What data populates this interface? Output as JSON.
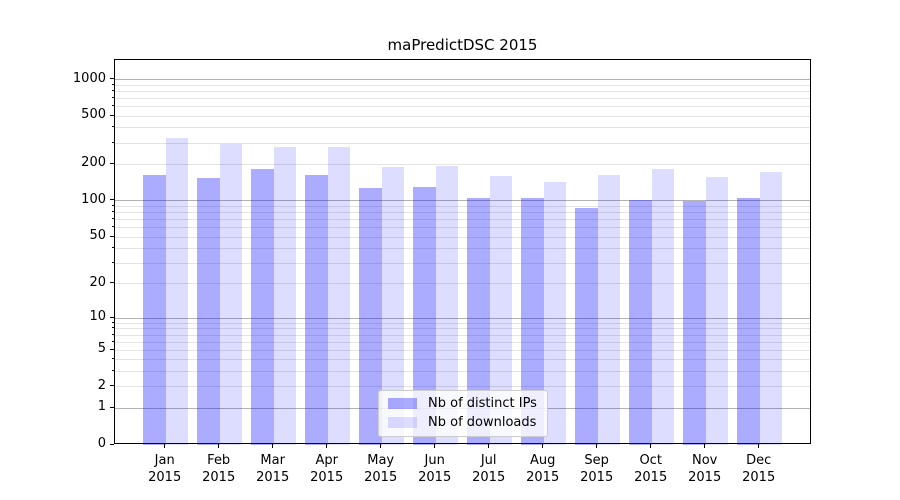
{
  "window": {
    "background": "#ffffff"
  },
  "chart_data": {
    "type": "bar",
    "title": "maPredictDSC 2015",
    "xlabel": "",
    "ylabel": "",
    "yscale": "log1p",
    "grid": true,
    "grid_major_color": "#b2b2b2",
    "grid_minor_color": "#e4e4e4",
    "ylim": [
      0,
      1430
    ],
    "yticks": [
      0,
      1,
      2,
      5,
      10,
      20,
      50,
      100,
      200,
      500,
      1000
    ],
    "ytick_decades": [
      1,
      10,
      100,
      1000
    ],
    "yticks_minor": [
      3,
      4,
      6,
      7,
      8,
      9,
      30,
      40,
      60,
      70,
      80,
      90,
      300,
      400,
      600,
      700,
      800,
      900
    ],
    "categories": [
      "Jan 2015",
      "Feb 2015",
      "Mar 2015",
      "Apr 2015",
      "May 2015",
      "Jun 2015",
      "Jul 2015",
      "Aug 2015",
      "Sep 2015",
      "Oct 2015",
      "Nov 2015",
      "Dec 2015"
    ],
    "series": [
      {
        "name": "Nb of distinct IPs",
        "color": "#0d0dff",
        "alpha": 0.35,
        "values": [
          165,
          155,
          182,
          165,
          128,
          130,
          106,
          106,
          88,
          102,
          99,
          106
        ]
      },
      {
        "name": "Nb of downloads",
        "color": "#0d0dff",
        "alpha": 0.14,
        "values": [
          330,
          295,
          278,
          278,
          190,
          196,
          162,
          144,
          164,
          184,
          157,
          172
        ]
      }
    ],
    "legend_position": "lower center"
  }
}
